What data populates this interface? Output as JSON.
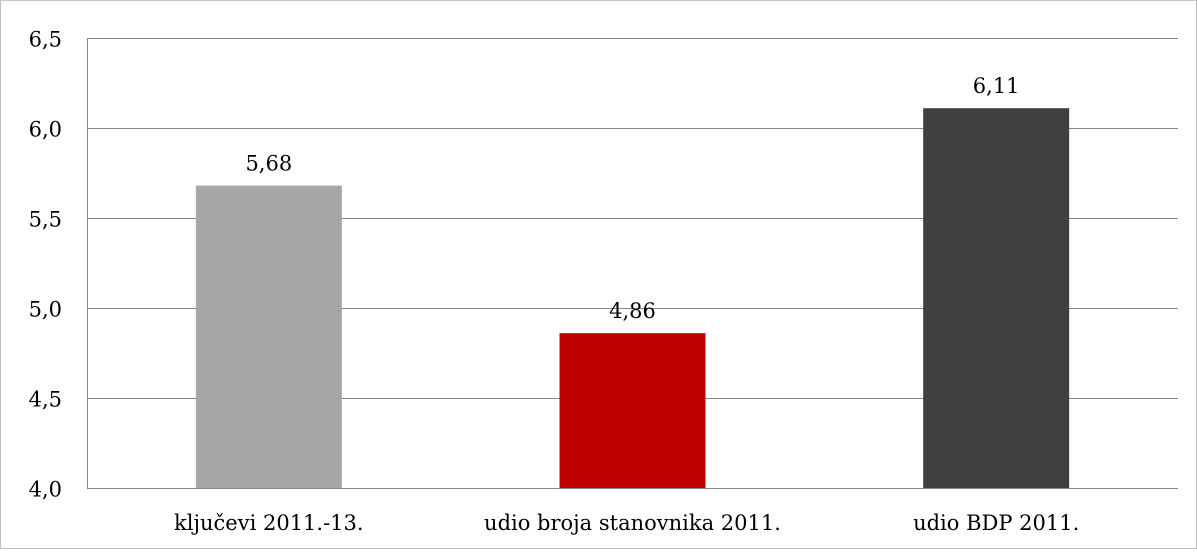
{
  "chart_data": {
    "type": "bar",
    "categories": [
      "ključevi 2011.-13.",
      "udio broja stanovnika 2011.",
      "udio BDP 2011."
    ],
    "values": [
      5.68,
      4.86,
      6.11
    ],
    "value_labels": [
      "5,68",
      "4,86",
      "6,11"
    ],
    "bar_colors": [
      "#a6a6a6",
      "#c00000",
      "#404040"
    ],
    "ylim": [
      4.0,
      6.5
    ],
    "yticks": [
      4.0,
      4.5,
      5.0,
      5.5,
      6.0,
      6.5
    ],
    "ytick_labels": [
      "4,0",
      "4,5",
      "5,0",
      "5,5",
      "6,0",
      "6,5"
    ],
    "grid": true,
    "title": "",
    "xlabel": "",
    "ylabel": ""
  }
}
